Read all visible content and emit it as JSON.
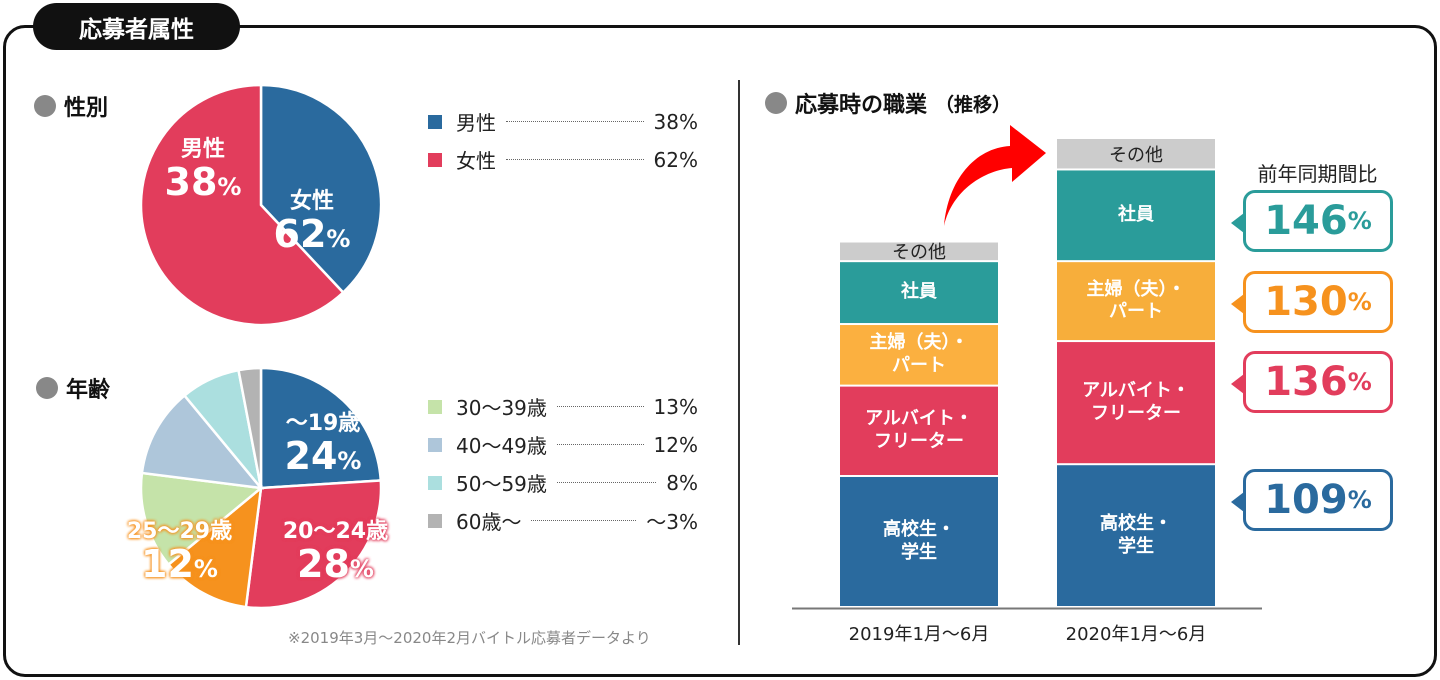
{
  "header": {
    "title": "応募者属性"
  },
  "gender": {
    "title": "性別",
    "slices": [
      {
        "label": "男性",
        "value": 38,
        "display": "38",
        "color": "#2a6a9e"
      },
      {
        "label": "女性",
        "value": 62,
        "display": "62",
        "color": "#e23d5c"
      }
    ],
    "legend": [
      {
        "label": "男性",
        "value": "38%"
      },
      {
        "label": "女性",
        "value": "62%"
      }
    ],
    "pct": "%"
  },
  "age": {
    "title": "年齢",
    "slices": [
      {
        "label": "〜19歳",
        "value": 24,
        "display": "24",
        "color": "#2a6a9e"
      },
      {
        "label": "20〜24歳",
        "value": 28,
        "display": "28",
        "color": "#e23d5c"
      },
      {
        "label": "25〜29歳",
        "value": 12,
        "display": "12",
        "color": "#f6921e"
      },
      {
        "label": "30〜39歳",
        "value": 13,
        "color": "#c5e3a9"
      },
      {
        "label": "40〜49歳",
        "value": 12,
        "color": "#aec6da"
      },
      {
        "label": "50〜59歳",
        "value": 8,
        "color": "#abdfdf"
      },
      {
        "label": "60歳〜",
        "value": 3,
        "color": "#b3b3b3"
      }
    ],
    "legend": [
      {
        "label": "30〜39歳",
        "value": "13%",
        "color": "#c5e3a9"
      },
      {
        "label": "40〜49歳",
        "value": "12%",
        "color": "#aec6da"
      },
      {
        "label": "50〜59歳",
        "value": "8%",
        "color": "#abdfdf"
      },
      {
        "label": "60歳〜",
        "value": "〜3%",
        "color": "#b3b3b3"
      }
    ],
    "note": "※2019年3月〜2020年2月バイトル応募者データより"
  },
  "chart_data": {
    "type": "bar",
    "stacked": true,
    "title": "応募時の職業",
    "title_suffix": "（推移）",
    "categories": [
      "2019年1月〜6月",
      "2020年1月〜6月"
    ],
    "series": [
      {
        "name": "高校生・\n学生",
        "color": "#2a6a9e",
        "values": [
          100,
          109
        ]
      },
      {
        "name": "アルバイト・\nフリーター",
        "color": "#e23d5c",
        "values": [
          69,
          94
        ]
      },
      {
        "name": "主婦（夫）・\nパート",
        "color": "#f7ae3b",
        "values": [
          47,
          61
        ]
      },
      {
        "name": "社員",
        "color": "#2a9c9a",
        "values": [
          48,
          70
        ]
      },
      {
        "name": "その他",
        "color": "#cccccc",
        "values": [
          15,
          24
        ]
      }
    ],
    "yoy_title": "前年同期間比",
    "yoy": [
      {
        "series": "社員",
        "value": "146",
        "color": "#2a9c9a"
      },
      {
        "series": "主婦（夫）・パート",
        "value": "130",
        "color": "#f6921e"
      },
      {
        "series": "アルバイト・フリーター",
        "value": "136",
        "color": "#e23d5c"
      },
      {
        "series": "高校生・学生",
        "value": "109",
        "color": "#2a6a9e"
      }
    ],
    "pct": "%",
    "arrow_color": "#ff0000"
  }
}
